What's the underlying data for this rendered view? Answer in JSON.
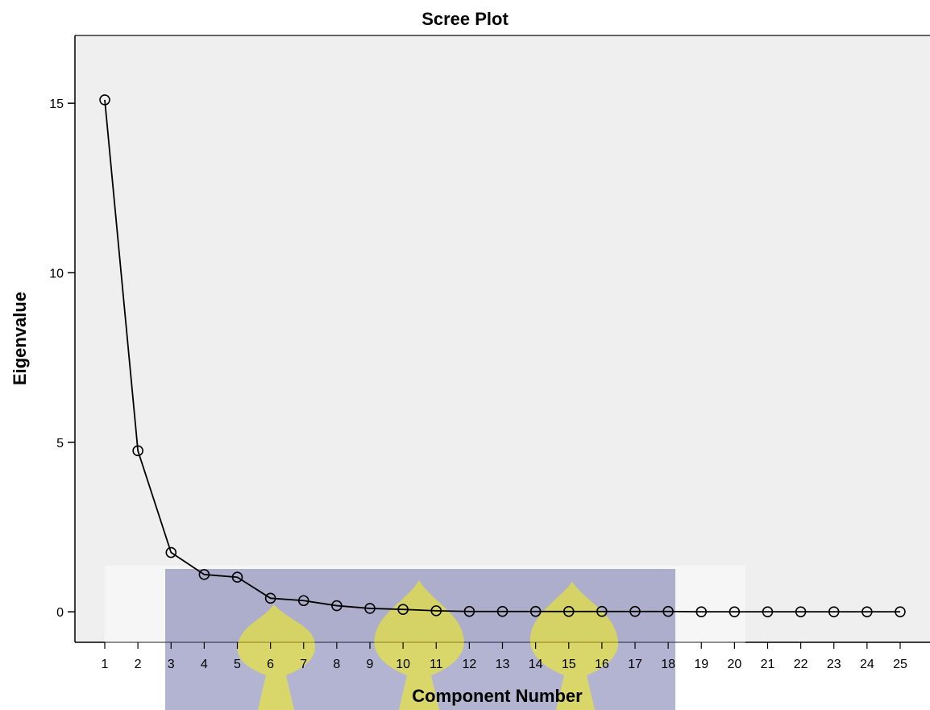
{
  "chart_data": {
    "type": "line",
    "title": "Scree Plot",
    "xlabel": "Component Number",
    "ylabel": "Eigenvalue",
    "x": [
      1,
      2,
      3,
      4,
      5,
      6,
      7,
      8,
      9,
      10,
      11,
      12,
      13,
      14,
      15,
      16,
      17,
      18,
      19,
      20,
      21,
      22,
      23,
      24,
      25
    ],
    "series": [
      {
        "values": [
          15.1,
          4.75,
          1.75,
          1.1,
          1.02,
          0.4,
          0.33,
          0.18,
          0.1,
          0.07,
          0.03,
          0.01,
          0.01,
          0.01,
          0.01,
          0.01,
          0.01,
          0.01,
          0.0,
          0.0,
          0.0,
          0.0,
          0.0,
          0.0,
          0.0
        ]
      }
    ],
    "yticks": [
      0,
      5,
      10,
      15
    ],
    "ylim": [
      -0.9,
      17.0
    ],
    "xlim": [
      0.1,
      25.9
    ],
    "grid": false,
    "marker": "circle-open",
    "colors": {
      "plot_background": "#efefef",
      "line": "#000000",
      "watermark_band": "#3c3f8c",
      "watermark_emblem": "#f5f000"
    },
    "watermark": "university-crest"
  }
}
